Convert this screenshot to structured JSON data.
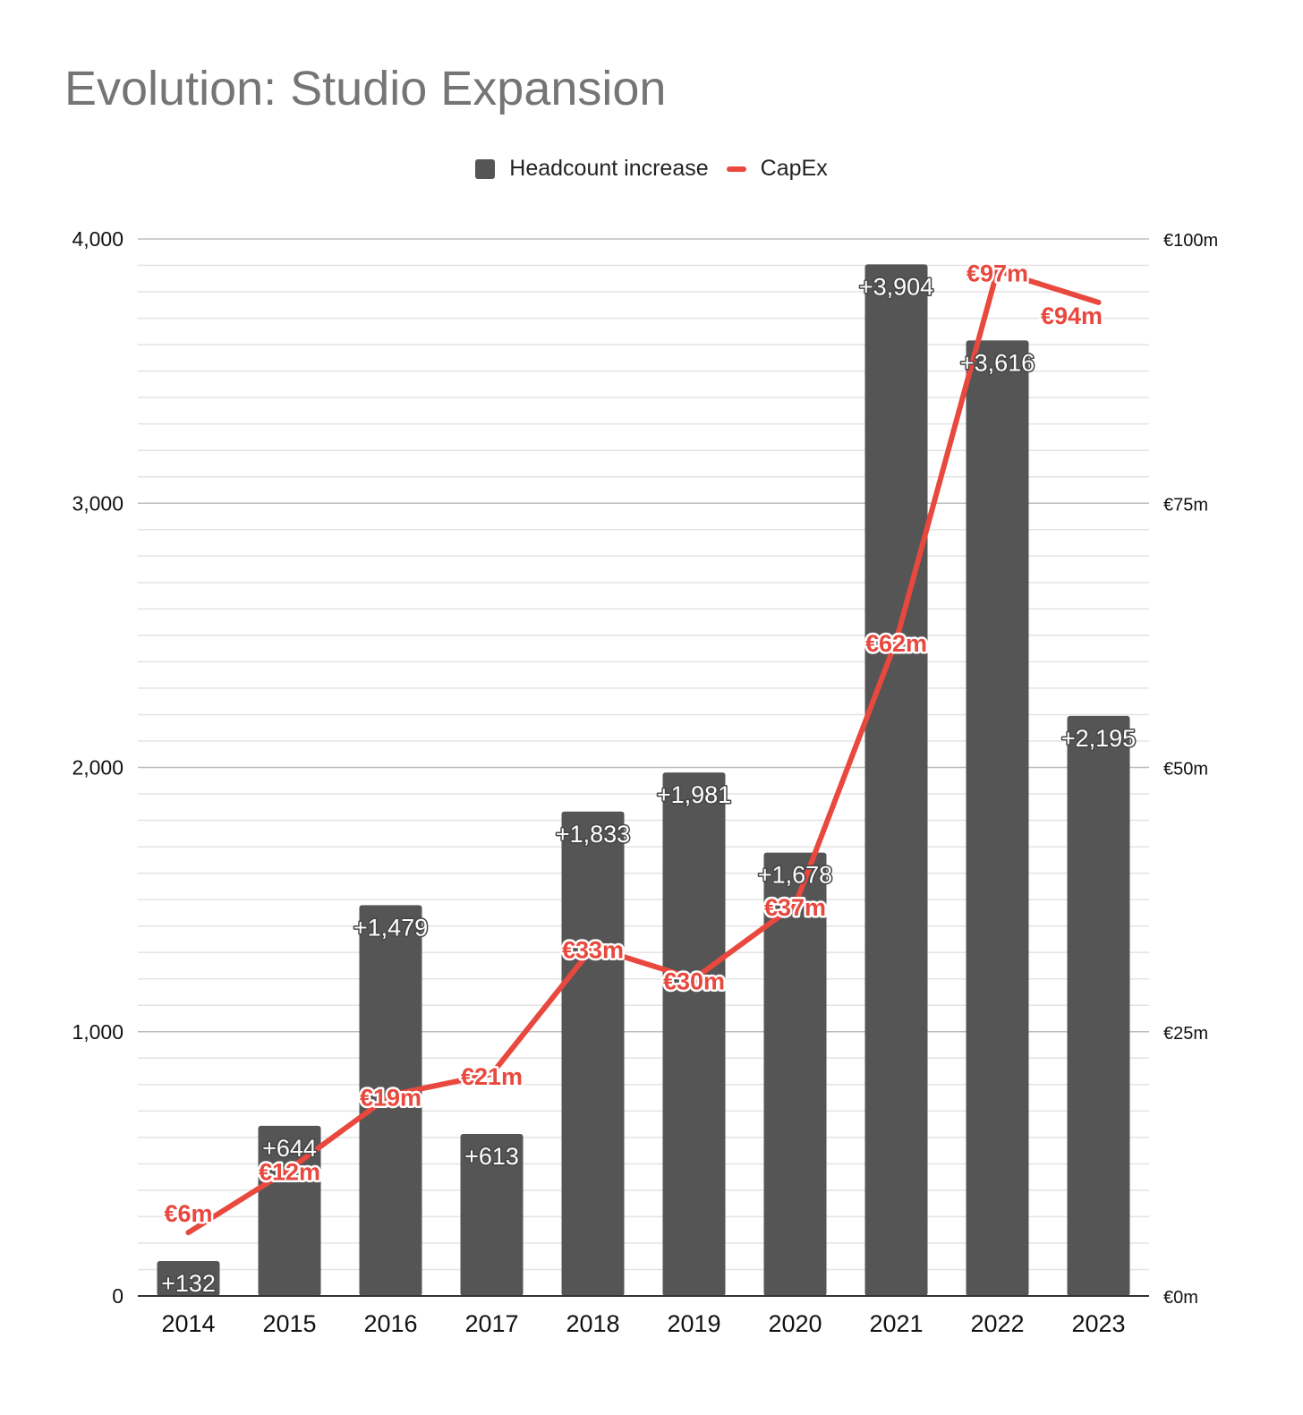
{
  "chart_data": {
    "type": "bar",
    "title": "Evolution: Studio Expansion",
    "categories": [
      "2014",
      "2015",
      "2016",
      "2017",
      "2018",
      "2019",
      "2020",
      "2021",
      "2022",
      "2023"
    ],
    "series": [
      {
        "name": "Headcount increase",
        "type": "bar",
        "axis": "left",
        "color": "#555555",
        "values": [
          132,
          644,
          1479,
          613,
          1833,
          1981,
          1678,
          3904,
          3616,
          2195
        ],
        "labels": [
          "+132",
          "+644",
          "+1,479",
          "+613",
          "+1,833",
          "+1,981",
          "+1,678",
          "+3,904",
          "+3,616",
          "+2,195"
        ]
      },
      {
        "name": "CapEx",
        "type": "line",
        "axis": "right",
        "color": "#e8483e",
        "values": [
          6,
          12,
          19,
          21,
          33,
          30,
          37,
          62,
          97,
          94
        ],
        "labels": [
          "€6m",
          "€12m",
          "€19m",
          "€21m",
          "€33m",
          "€30m",
          "€37m",
          "€62m",
          "€97m",
          "€94m"
        ]
      }
    ],
    "y_left": {
      "ylim": [
        0,
        4000
      ],
      "ticks": [
        "0",
        "1,000",
        "2,000",
        "3,000",
        "4,000"
      ],
      "tick_values": [
        0,
        1000,
        2000,
        3000,
        4000
      ]
    },
    "y_right": {
      "ylim": [
        0,
        100
      ],
      "ticks": [
        "€0m",
        "€25m",
        "€50m",
        "€75m",
        "€100m"
      ],
      "tick_values": [
        0,
        25,
        50,
        75,
        100
      ]
    },
    "xlabel": "",
    "ylabel": "",
    "grid": true,
    "legend_position": "top-center"
  }
}
